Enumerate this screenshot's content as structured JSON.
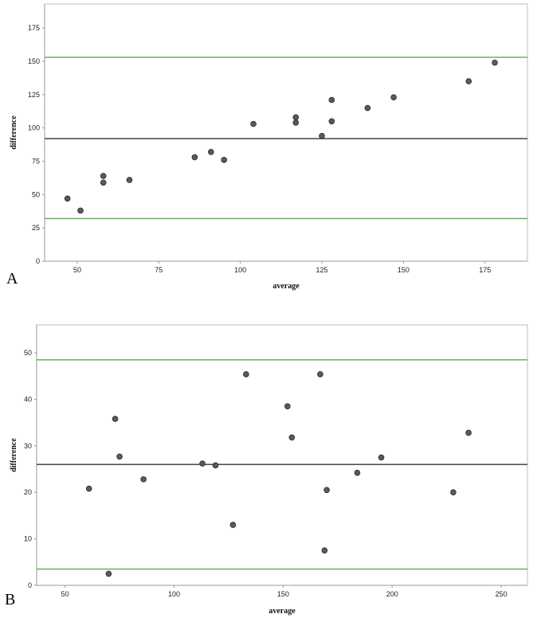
{
  "chart_data": [
    {
      "type": "scatter",
      "panel_label": "A",
      "xlabel": "average",
      "ylabel": "difference",
      "xlim": [
        40,
        188
      ],
      "ylim": [
        0,
        193
      ],
      "xticks": [
        50,
        75,
        100,
        125,
        150,
        175
      ],
      "yticks": [
        0,
        25,
        50,
        75,
        100,
        125,
        150,
        175
      ],
      "grid": false,
      "points": [
        {
          "x": 47,
          "y": 47
        },
        {
          "x": 51,
          "y": 38
        },
        {
          "x": 58,
          "y": 64
        },
        {
          "x": 58,
          "y": 59
        },
        {
          "x": 66,
          "y": 61
        },
        {
          "x": 86,
          "y": 78
        },
        {
          "x": 91,
          "y": 82
        },
        {
          "x": 95,
          "y": 76
        },
        {
          "x": 104,
          "y": 103
        },
        {
          "x": 117,
          "y": 108
        },
        {
          "x": 117,
          "y": 104
        },
        {
          "x": 125,
          "y": 94
        },
        {
          "x": 128,
          "y": 121
        },
        {
          "x": 128,
          "y": 105
        },
        {
          "x": 139,
          "y": 115
        },
        {
          "x": 147,
          "y": 123
        },
        {
          "x": 170,
          "y": 135
        },
        {
          "x": 178,
          "y": 149
        }
      ],
      "reference_lines": [
        {
          "role": "upper",
          "y": 153,
          "color": "#5aaa50"
        },
        {
          "role": "mean",
          "y": 92,
          "color": "#333333"
        },
        {
          "role": "lower",
          "y": 32,
          "color": "#5aaa50"
        }
      ]
    },
    {
      "type": "scatter",
      "panel_label": "B",
      "xlabel": "average",
      "ylabel": "difference",
      "xlim": [
        37,
        262
      ],
      "ylim": [
        0,
        56
      ],
      "xticks": [
        50,
        100,
        150,
        200,
        250
      ],
      "yticks": [
        0,
        10,
        20,
        30,
        40,
        50
      ],
      "grid": false,
      "points": [
        {
          "x": 61,
          "y": 20.8
        },
        {
          "x": 70,
          "y": 2.5
        },
        {
          "x": 73,
          "y": 35.8
        },
        {
          "x": 75,
          "y": 27.7
        },
        {
          "x": 86,
          "y": 22.8
        },
        {
          "x": 113,
          "y": 26.2
        },
        {
          "x": 119,
          "y": 25.8
        },
        {
          "x": 127,
          "y": 13
        },
        {
          "x": 133,
          "y": 45.4
        },
        {
          "x": 152,
          "y": 38.5
        },
        {
          "x": 154,
          "y": 31.8
        },
        {
          "x": 167,
          "y": 45.4
        },
        {
          "x": 169,
          "y": 7.5
        },
        {
          "x": 170,
          "y": 20.5
        },
        {
          "x": 184,
          "y": 24.2
        },
        {
          "x": 195,
          "y": 27.5
        },
        {
          "x": 228,
          "y": 20
        },
        {
          "x": 235,
          "y": 32.8
        }
      ],
      "reference_lines": [
        {
          "role": "upper",
          "y": 48.5,
          "color": "#5aaa50"
        },
        {
          "role": "mean",
          "y": 26,
          "color": "#333333"
        },
        {
          "role": "lower",
          "y": 3.5,
          "color": "#5aaa50"
        }
      ]
    }
  ]
}
